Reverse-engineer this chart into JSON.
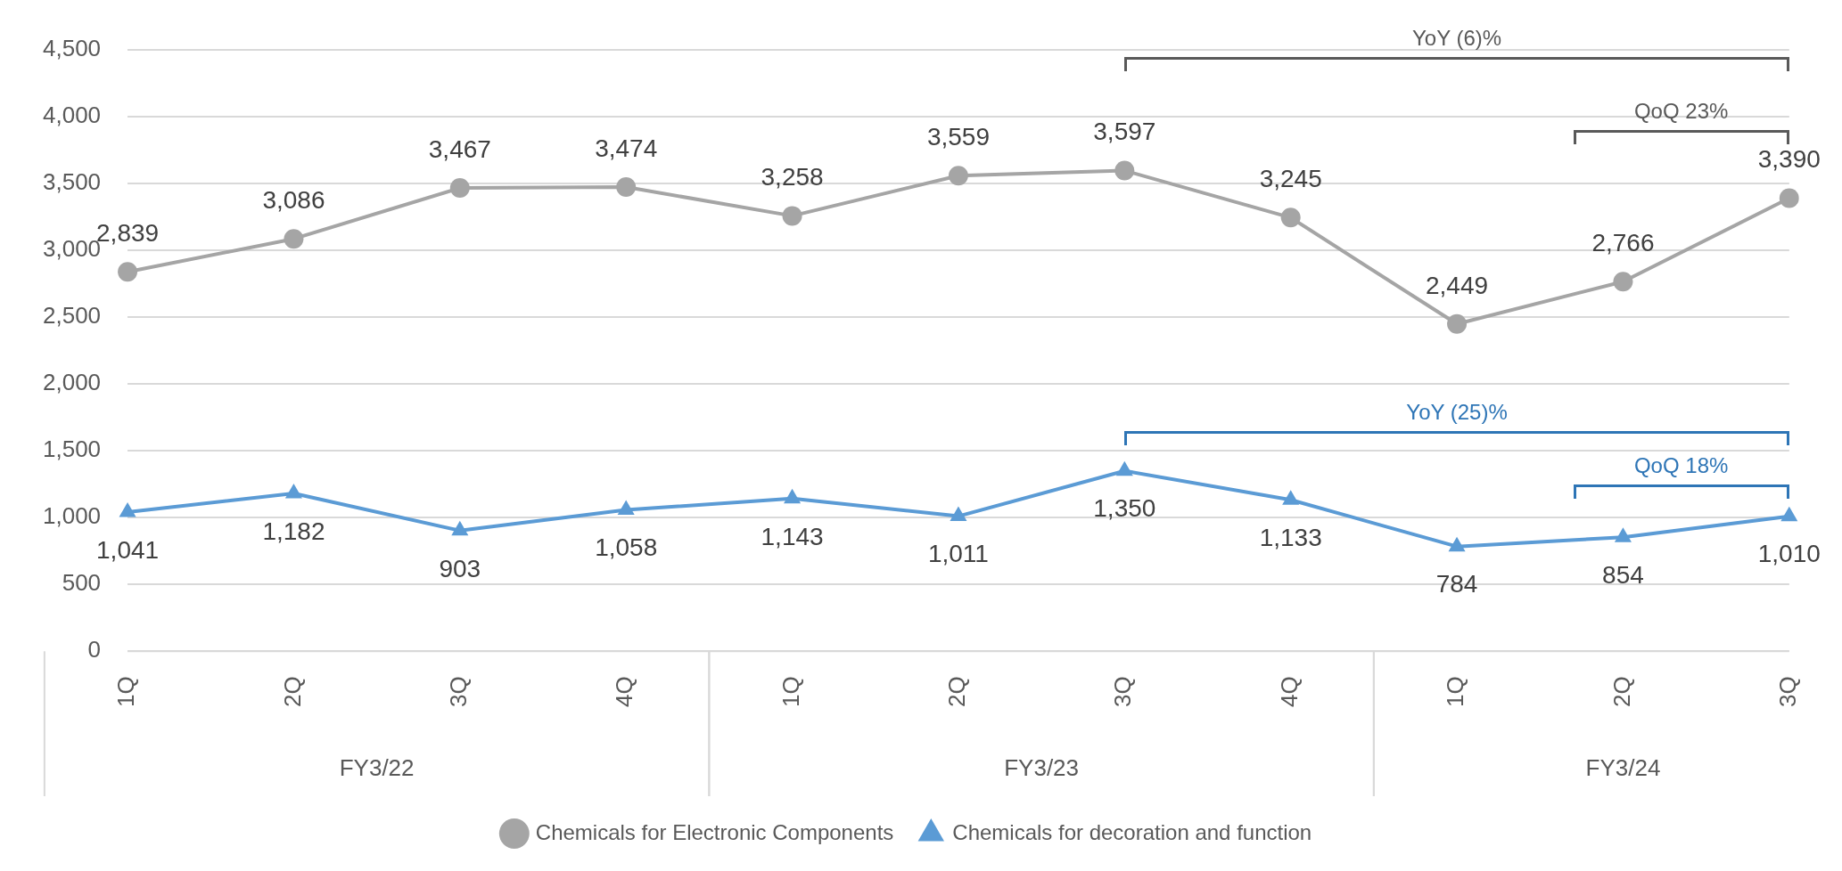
{
  "chart_data": {
    "type": "line",
    "categories": [
      "1Q",
      "2Q",
      "3Q",
      "4Q",
      "1Q",
      "2Q",
      "3Q",
      "4Q",
      "1Q",
      "2Q",
      "3Q"
    ],
    "series": [
      {
        "name": "Chemicals for Electronic Components",
        "color": "#a5a5a5",
        "marker": "circle",
        "values": [
          2839,
          3086,
          3467,
          3474,
          3258,
          3559,
          3597,
          3245,
          2449,
          2766,
          3390
        ],
        "value_labels": [
          "2,839",
          "3,086",
          "3,467",
          "3,474",
          "3,258",
          "3,559",
          "3,597",
          "3,245",
          "2,449",
          "2,766",
          "3,390"
        ]
      },
      {
        "name": "Chemicals for decoration and function",
        "color": "#5b9bd5",
        "marker": "triangle",
        "values": [
          1041,
          1182,
          903,
          1058,
          1143,
          1011,
          1350,
          1133,
          784,
          854,
          1010
        ],
        "value_labels": [
          "1,041",
          "1,182",
          "903",
          "1,058",
          "1,143",
          "1,011",
          "1,350",
          "1,133",
          "784",
          "854",
          "1,010"
        ]
      }
    ],
    "ylim": [
      0,
      4500
    ],
    "yticks": [
      0,
      500,
      {
        "value": 1000,
        "label": "1,000"
      },
      {
        "value": 1500,
        "label": "1,500"
      },
      {
        "value": 2000,
        "label": "2,000"
      },
      {
        "value": 2500,
        "label": "2,500"
      },
      {
        "value": 3000,
        "label": "3,000"
      },
      {
        "value": 3500,
        "label": "3,500"
      },
      {
        "value": 4000,
        "label": "4,000"
      },
      {
        "value": 4500,
        "label": "4,500"
      }
    ],
    "grid": "y",
    "legend": "bottom",
    "annotations": [
      "FY3/22",
      "FY3/23",
      "FY3/24",
      "YoY (6)%",
      "QoQ 23%",
      "YoY (25)%",
      "QoQ 18%"
    ]
  }
}
